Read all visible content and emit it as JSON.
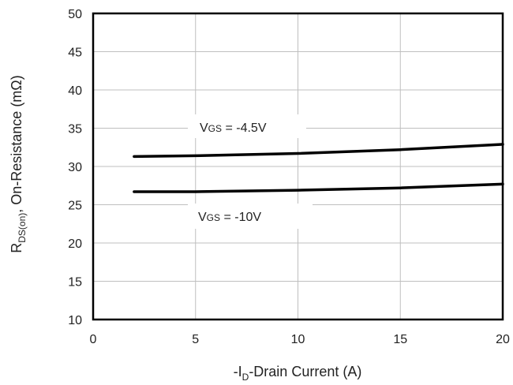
{
  "chart_data": {
    "type": "line",
    "xlabel": {
      "prefix": "-I",
      "sub": "D",
      "suffix": "-Drain Current (A)"
    },
    "ylabel": {
      "prefix": "R",
      "sub": "DS(on)",
      "suffix": ",  On-Resistance (mΩ)"
    },
    "xlim": [
      0,
      20
    ],
    "ylim": [
      10,
      50
    ],
    "xticks": [
      0,
      5,
      10,
      15,
      20
    ],
    "yticks": [
      10,
      15,
      20,
      25,
      30,
      35,
      40,
      45,
      50
    ],
    "grid": true,
    "series": [
      {
        "label": {
          "v": "V",
          "sub": "GS",
          "rest": " = -4.5V"
        },
        "color": "#000000",
        "x": [
          2,
          5,
          10,
          15,
          20
        ],
        "y": [
          31.3,
          31.4,
          31.7,
          32.2,
          32.9
        ]
      },
      {
        "label": {
          "v": "V",
          "sub": "GS",
          "rest": " = -10V"
        },
        "color": "#000000",
        "x": [
          2,
          5,
          10,
          15,
          20
        ],
        "y": [
          26.7,
          26.7,
          26.9,
          27.2,
          27.7
        ]
      }
    ]
  }
}
